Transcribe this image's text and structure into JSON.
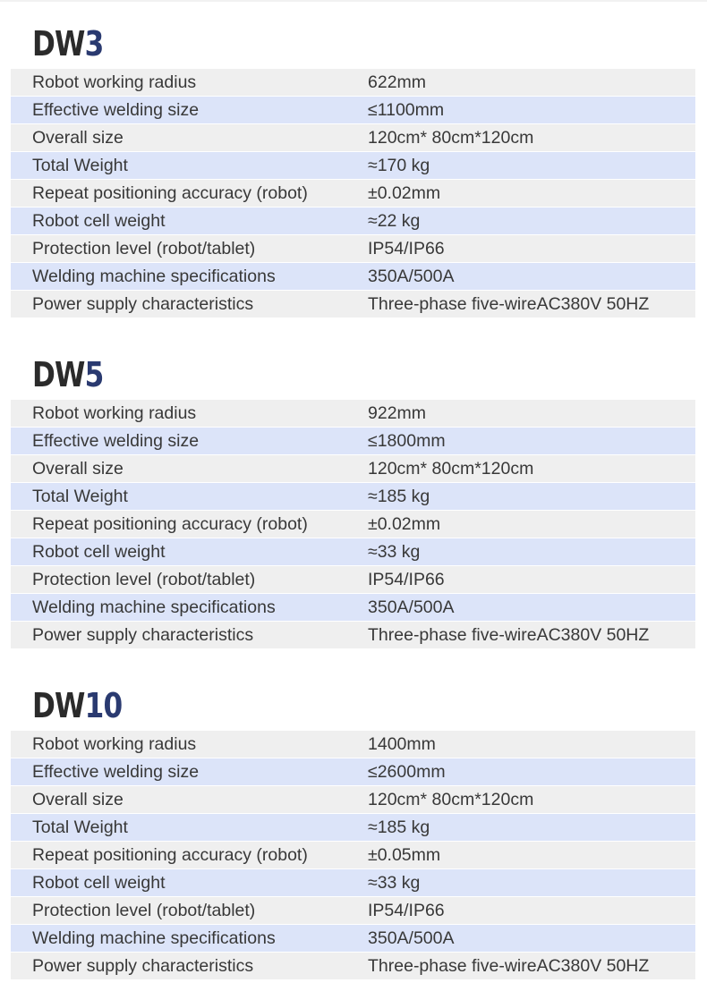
{
  "colors": {
    "gray_row": "#efefef",
    "blue_row": "#dce4f9",
    "title_prefix": "#2b2b2b",
    "title_number": "#2a3a70"
  },
  "sections": [
    {
      "prefix": "DW",
      "number": "3",
      "rows": [
        {
          "label": "Robot working radius",
          "value": "622mm"
        },
        {
          "label": "Effective welding size",
          "value": "≤1100mm"
        },
        {
          "label": "Overall size",
          "value": "120cm* 80cm*120cm"
        },
        {
          "label": "Total Weight",
          "value": "≈170 kg"
        },
        {
          "label": "Repeat positioning accuracy (robot)",
          "value": "±0.02mm"
        },
        {
          "label": "Robot cell weight",
          "value": "≈22 kg"
        },
        {
          "label": "Protection level (robot/tablet)",
          "value": "IP54/IP66"
        },
        {
          "label": "Welding machine specifications",
          "value": "350A/500A"
        },
        {
          "label": "Power supply characteristics",
          "value": "Three-phase five-wireAC380V 50HZ"
        }
      ]
    },
    {
      "prefix": "DW",
      "number": "5",
      "rows": [
        {
          "label": "Robot working radius",
          "value": "922mm"
        },
        {
          "label": "Effective welding size",
          "value": "≤1800mm"
        },
        {
          "label": "Overall size",
          "value": "120cm* 80cm*120cm"
        },
        {
          "label": "Total Weight",
          "value": "≈185 kg"
        },
        {
          "label": "Repeat positioning accuracy (robot)",
          "value": "±0.02mm"
        },
        {
          "label": "Robot cell weight",
          "value": "≈33 kg"
        },
        {
          "label": "Protection level (robot/tablet)",
          "value": "IP54/IP66"
        },
        {
          "label": "Welding machine specifications",
          "value": "350A/500A"
        },
        {
          "label": "Power supply characteristics",
          "value": "Three-phase five-wireAC380V 50HZ"
        }
      ]
    },
    {
      "prefix": "DW",
      "number": "10",
      "rows": [
        {
          "label": "Robot working radius",
          "value": "1400mm"
        },
        {
          "label": "Effective welding size",
          "value": "≤2600mm"
        },
        {
          "label": "Overall size",
          "value": "120cm* 80cm*120cm"
        },
        {
          "label": "Total Weight",
          "value": "≈185 kg"
        },
        {
          "label": "Repeat positioning accuracy (robot)",
          "value": "±0.05mm"
        },
        {
          "label": "Robot cell weight",
          "value": "≈33 kg"
        },
        {
          "label": "Protection level (robot/tablet)",
          "value": "IP54/IP66"
        },
        {
          "label": "Welding machine specifications",
          "value": "350A/500A"
        },
        {
          "label": "Power supply characteristics",
          "value": "Three-phase five-wireAC380V 50HZ"
        }
      ]
    }
  ]
}
